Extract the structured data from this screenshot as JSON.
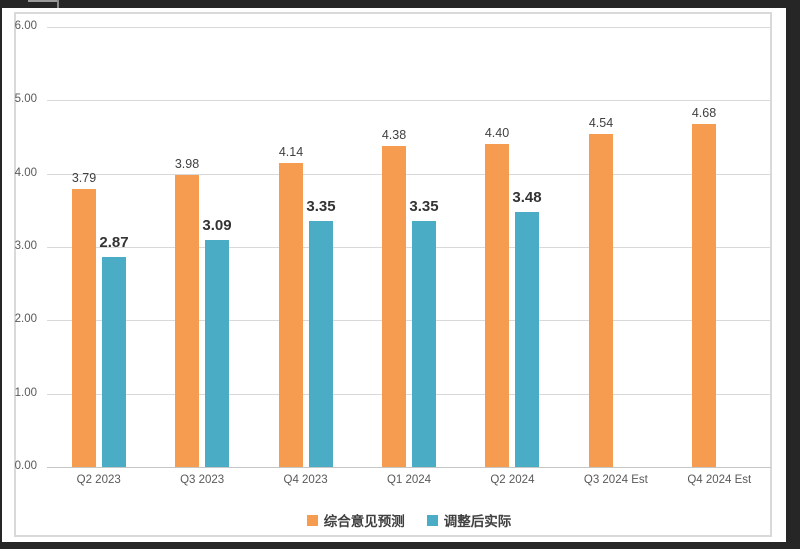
{
  "chart_data": {
    "type": "bar",
    "title": "",
    "categories": [
      "Q2 2023",
      "Q3 2023",
      "Q4 2023",
      "Q1 2024",
      "Q2 2024",
      "Q3 2024 Est",
      "Q4 2024 Est"
    ],
    "series": [
      {
        "name": "综合意见预测",
        "color": "#F59C51",
        "values": [
          3.79,
          3.98,
          4.14,
          4.38,
          4.4,
          4.54,
          4.68
        ]
      },
      {
        "name": "调整后实际",
        "color": "#4BACC6",
        "values": [
          2.87,
          3.09,
          3.35,
          3.35,
          3.48,
          null,
          null
        ]
      }
    ],
    "ylim": [
      0,
      6
    ],
    "yticks": [
      "0.00",
      "1.00",
      "2.00",
      "3.00",
      "4.00",
      "5.00",
      "6.00"
    ],
    "grid": true,
    "data_labels": true,
    "legend_position": "bottom"
  },
  "colors": {
    "background": "#FFFFFF",
    "window_edge": "#262626",
    "frame_border": "#D9D9D9",
    "gridline": "#D9D9D9",
    "axis_line": "#C6C6C6",
    "tick_text": "#595959",
    "label_text": "#404040",
    "series_forecast": "#F59C51",
    "series_actual": "#4BACC6"
  }
}
